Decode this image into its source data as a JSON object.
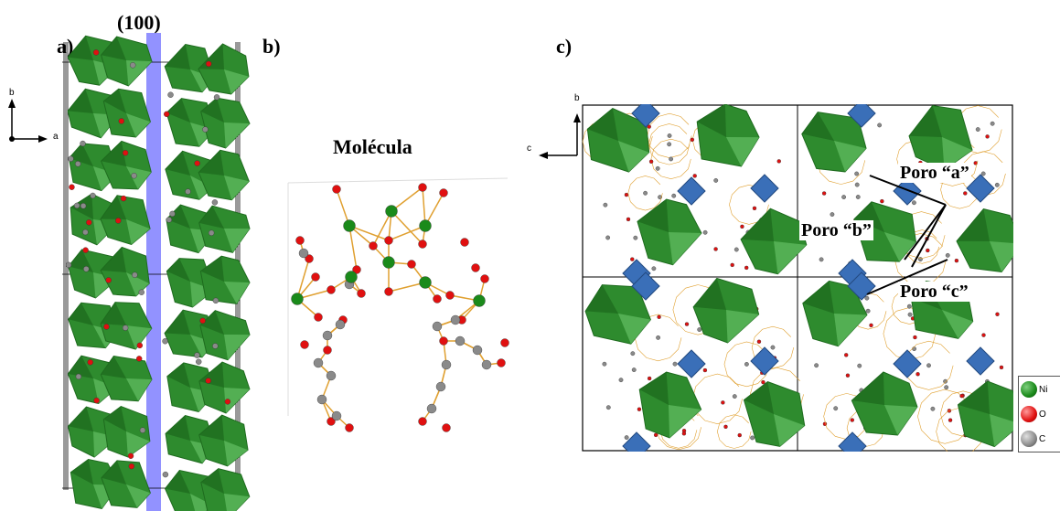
{
  "panels": {
    "a": {
      "label": "a)",
      "plane_label": "(100)",
      "axis_b": "b",
      "axis_a": "a"
    },
    "b": {
      "label": "b)",
      "title": "Molécula"
    },
    "c": {
      "label": "c)",
      "axis_b": "b",
      "axis_c": "c",
      "pores": [
        "Poro “a”",
        "Poro “b”",
        "Poro “c”"
      ]
    }
  },
  "legend": [
    {
      "symbol": "Ni",
      "color": "#1a8a1a"
    },
    {
      "symbol": "O",
      "color": "#e01010"
    },
    {
      "symbol": "C",
      "color": "#8a8a8a"
    }
  ],
  "colors": {
    "octahedron": "#2e8b2e",
    "octahedron_dark": "#1e6b1e",
    "tetrahedron": "#3a6fb8",
    "plane": "#7f7fff",
    "bond": "#e0a030",
    "oxygen": "#e01010",
    "carbon": "#8a8a8a",
    "nickel": "#1a8a1a"
  }
}
